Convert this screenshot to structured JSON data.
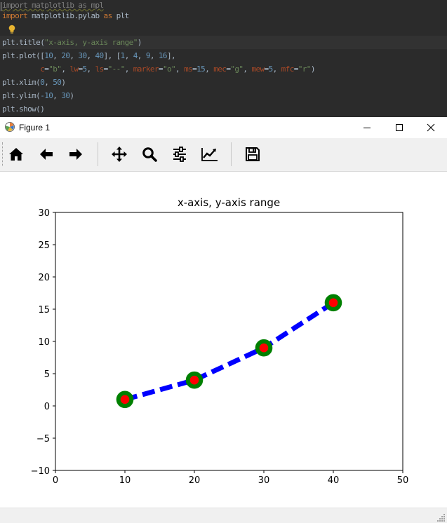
{
  "editor": {
    "lines": [
      {
        "tokens": [
          {
            "t": "import matplotlib as mpl",
            "c": "dim"
          }
        ]
      },
      {
        "tokens": [
          {
            "t": "import",
            "c": "kw"
          },
          {
            "t": " matplotlib.pylab ",
            "c": "fn"
          },
          {
            "t": "as",
            "c": "kw"
          },
          {
            "t": " plt",
            "c": "fn"
          }
        ]
      },
      {
        "tokens": []
      },
      {
        "tokens": [
          {
            "t": "plt.title(",
            "c": "fn"
          },
          {
            "t": "\"x-axis, y-axis range\"",
            "c": "str"
          },
          {
            "t": ")",
            "c": "fn"
          }
        ]
      },
      {
        "tokens": [
          {
            "t": "plt.plot([",
            "c": "fn"
          },
          {
            "t": "10",
            "c": "num"
          },
          {
            "t": ", ",
            "c": "fn"
          },
          {
            "t": "20",
            "c": "num"
          },
          {
            "t": ", ",
            "c": "fn"
          },
          {
            "t": "30",
            "c": "num"
          },
          {
            "t": ", ",
            "c": "fn"
          },
          {
            "t": "40",
            "c": "num"
          },
          {
            "t": "], [",
            "c": "fn"
          },
          {
            "t": "1",
            "c": "num"
          },
          {
            "t": ", ",
            "c": "fn"
          },
          {
            "t": "4",
            "c": "num"
          },
          {
            "t": ", ",
            "c": "fn"
          },
          {
            "t": "9",
            "c": "num"
          },
          {
            "t": ", ",
            "c": "fn"
          },
          {
            "t": "16",
            "c": "num"
          },
          {
            "t": "],",
            "c": "fn"
          }
        ]
      },
      {
        "tokens": [
          {
            "t": "         ",
            "c": "fn"
          },
          {
            "t": "c",
            "c": "kwarg"
          },
          {
            "t": "=",
            "c": "fn"
          },
          {
            "t": "\"b\"",
            "c": "str"
          },
          {
            "t": ", ",
            "c": "fn"
          },
          {
            "t": "lw",
            "c": "kwarg"
          },
          {
            "t": "=",
            "c": "fn"
          },
          {
            "t": "5",
            "c": "num"
          },
          {
            "t": ", ",
            "c": "fn"
          },
          {
            "t": "ls",
            "c": "kwarg"
          },
          {
            "t": "=",
            "c": "fn"
          },
          {
            "t": "\"--\"",
            "c": "str"
          },
          {
            "t": ", ",
            "c": "fn"
          },
          {
            "t": "marker",
            "c": "kwarg"
          },
          {
            "t": "=",
            "c": "fn"
          },
          {
            "t": "\"o\"",
            "c": "str"
          },
          {
            "t": ", ",
            "c": "fn"
          },
          {
            "t": "ms",
            "c": "kwarg"
          },
          {
            "t": "=",
            "c": "fn"
          },
          {
            "t": "15",
            "c": "num"
          },
          {
            "t": ", ",
            "c": "fn"
          },
          {
            "t": "mec",
            "c": "kwarg"
          },
          {
            "t": "=",
            "c": "fn"
          },
          {
            "t": "\"g\"",
            "c": "str"
          },
          {
            "t": ", ",
            "c": "fn"
          },
          {
            "t": "mew",
            "c": "kwarg"
          },
          {
            "t": "=",
            "c": "fn"
          },
          {
            "t": "5",
            "c": "num"
          },
          {
            "t": ", ",
            "c": "fn"
          },
          {
            "t": "mfc",
            "c": "kwarg"
          },
          {
            "t": "=",
            "c": "fn"
          },
          {
            "t": "\"r\"",
            "c": "str"
          },
          {
            "t": ")",
            "c": "fn"
          }
        ]
      },
      {
        "tokens": [
          {
            "t": "plt.xlim(",
            "c": "fn"
          },
          {
            "t": "0",
            "c": "num"
          },
          {
            "t": ", ",
            "c": "fn"
          },
          {
            "t": "50",
            "c": "num"
          },
          {
            "t": ")",
            "c": "fn"
          }
        ]
      },
      {
        "tokens": [
          {
            "t": "plt.ylim(",
            "c": "fn"
          },
          {
            "t": "-10",
            "c": "num"
          },
          {
            "t": ", ",
            "c": "fn"
          },
          {
            "t": "30",
            "c": "num"
          },
          {
            "t": ")",
            "c": "fn"
          }
        ]
      },
      {
        "tokens": [
          {
            "t": "plt.show()",
            "c": "fn"
          }
        ]
      }
    ]
  },
  "window": {
    "title": "Figure 1",
    "controls": {
      "minimize": "minimize",
      "maximize": "maximize",
      "close": "close"
    }
  },
  "toolbar": {
    "buttons": [
      {
        "name": "home-button",
        "icon": "home-icon"
      },
      {
        "name": "back-button",
        "icon": "arrow-left-icon"
      },
      {
        "name": "forward-button",
        "icon": "arrow-right-icon"
      },
      {
        "name": "pan-button",
        "icon": "move-icon"
      },
      {
        "name": "zoom-button",
        "icon": "magnifier-icon"
      },
      {
        "name": "configure-subplots-button",
        "icon": "sliders-icon"
      },
      {
        "name": "edit-axis-button",
        "icon": "line-chart-icon"
      },
      {
        "name": "save-button",
        "icon": "floppy-disk-icon"
      }
    ]
  },
  "colors": {
    "editor_bg": "#2b2b2b",
    "line": "#0000ff",
    "marker_edge": "#008000",
    "marker_face": "#ff0000"
  },
  "chart_data": {
    "type": "line",
    "title": "x-axis, y-axis range",
    "x": [
      10,
      20,
      30,
      40
    ],
    "series": [
      {
        "name": "",
        "values": [
          1,
          4,
          9,
          16
        ],
        "color": "b",
        "linestyle": "--",
        "linewidth": 5,
        "marker": "o",
        "markersize": 15,
        "markeredgecolor": "g",
        "markeredgewidth": 5,
        "markerfacecolor": "r"
      }
    ],
    "xlim": [
      0,
      50
    ],
    "ylim": [
      -10,
      30
    ],
    "xticks": [
      0,
      10,
      20,
      30,
      40,
      50
    ],
    "yticks": [
      -10,
      -5,
      0,
      5,
      10,
      15,
      20,
      25,
      30
    ],
    "xlabel": "",
    "ylabel": "",
    "grid": false,
    "legend": false
  }
}
